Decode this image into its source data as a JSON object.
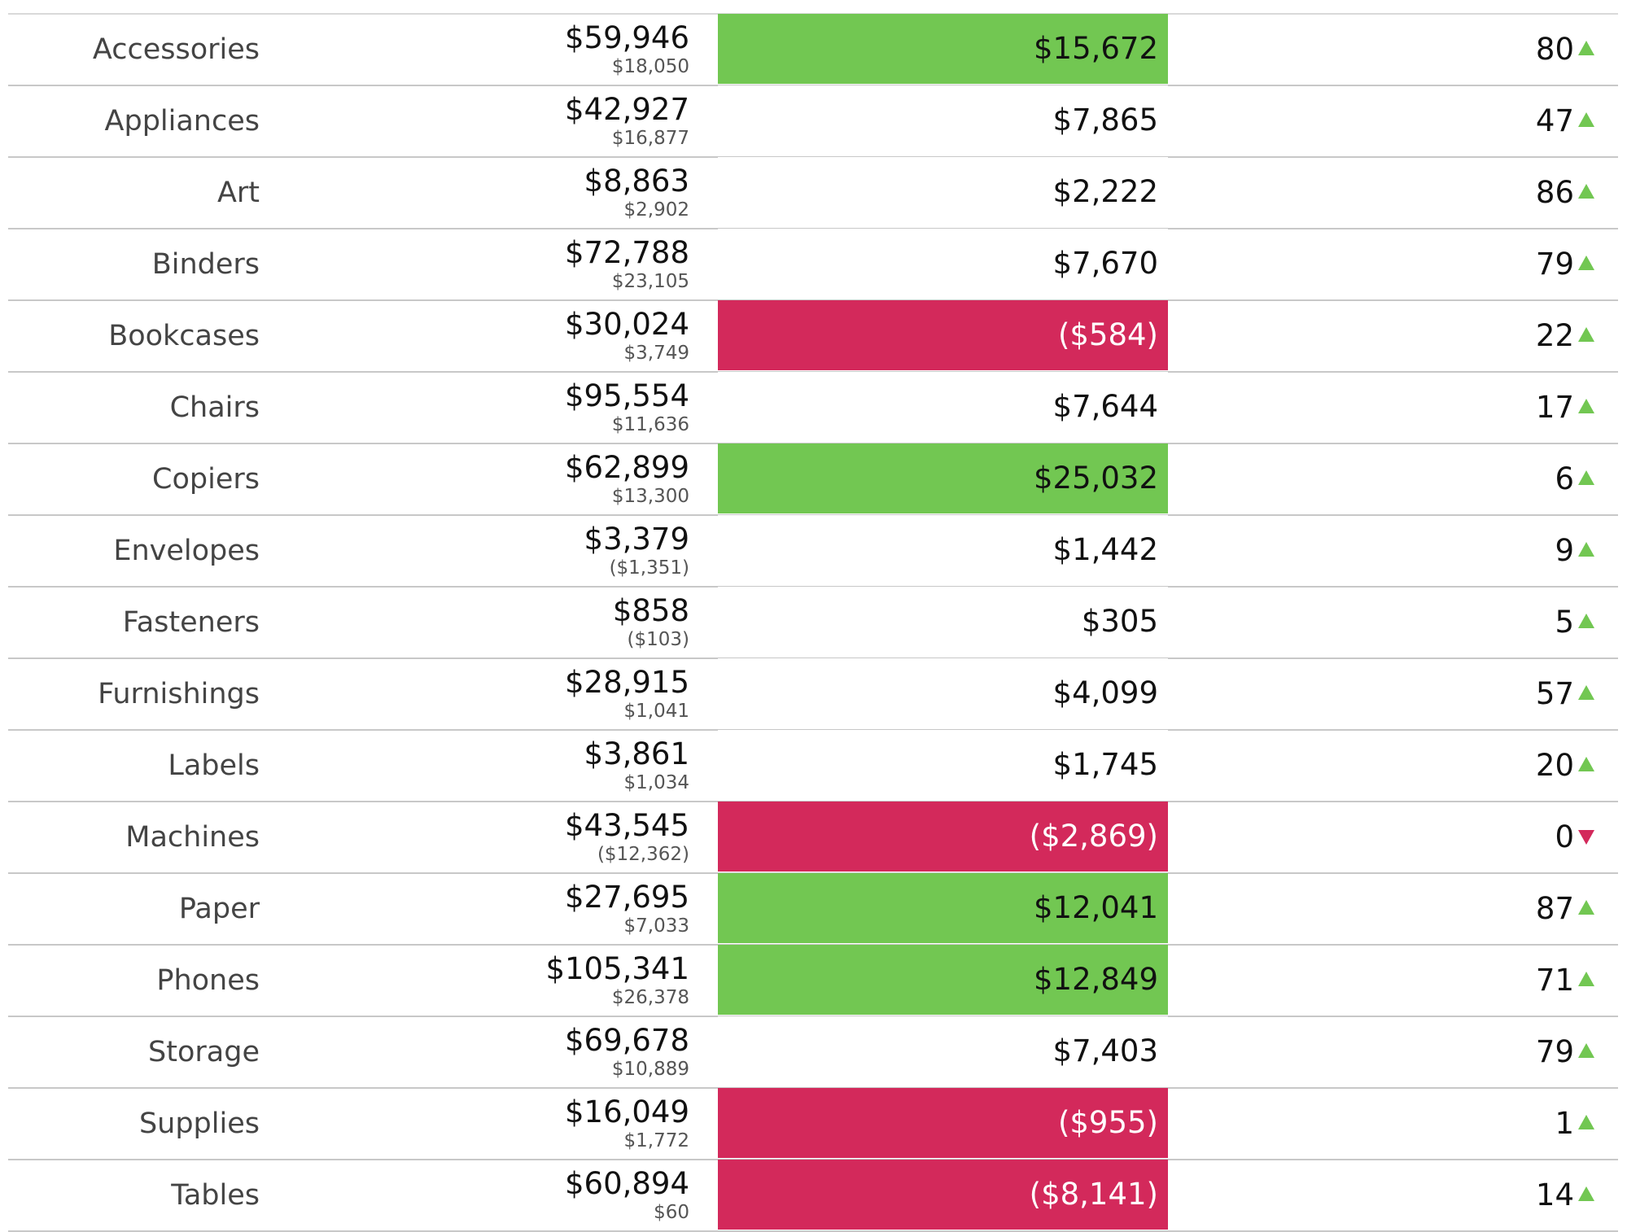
{
  "colors": {
    "positive": "#72c752",
    "negative": "#d3295b",
    "row_divider": "#c8c8c8"
  },
  "rows": [
    {
      "category": "Accessories",
      "sales": "$59,946",
      "sales_sub": "$18,050",
      "profit": "$15,672",
      "profit_status": "pos",
      "count": "80",
      "trend": "up"
    },
    {
      "category": "Appliances",
      "sales": "$42,927",
      "sales_sub": "$16,877",
      "profit": "$7,865",
      "profit_status": "neutral",
      "count": "47",
      "trend": "up"
    },
    {
      "category": "Art",
      "sales": "$8,863",
      "sales_sub": "$2,902",
      "profit": "$2,222",
      "profit_status": "neutral",
      "count": "86",
      "trend": "up"
    },
    {
      "category": "Binders",
      "sales": "$72,788",
      "sales_sub": "$23,105",
      "profit": "$7,670",
      "profit_status": "neutral",
      "count": "79",
      "trend": "up"
    },
    {
      "category": "Bookcases",
      "sales": "$30,024",
      "sales_sub": "$3,749",
      "profit": "($584)",
      "profit_status": "neg",
      "count": "22",
      "trend": "up"
    },
    {
      "category": "Chairs",
      "sales": "$95,554",
      "sales_sub": "$11,636",
      "profit": "$7,644",
      "profit_status": "neutral",
      "count": "17",
      "trend": "up"
    },
    {
      "category": "Copiers",
      "sales": "$62,899",
      "sales_sub": "$13,300",
      "profit": "$25,032",
      "profit_status": "pos",
      "count": "6",
      "trend": "up"
    },
    {
      "category": "Envelopes",
      "sales": "$3,379",
      "sales_sub": "($1,351)",
      "profit": "$1,442",
      "profit_status": "neutral",
      "count": "9",
      "trend": "up"
    },
    {
      "category": "Fasteners",
      "sales": "$858",
      "sales_sub": "($103)",
      "profit": "$305",
      "profit_status": "neutral",
      "count": "5",
      "trend": "up"
    },
    {
      "category": "Furnishings",
      "sales": "$28,915",
      "sales_sub": "$1,041",
      "profit": "$4,099",
      "profit_status": "neutral",
      "count": "57",
      "trend": "up"
    },
    {
      "category": "Labels",
      "sales": "$3,861",
      "sales_sub": "$1,034",
      "profit": "$1,745",
      "profit_status": "neutral",
      "count": "20",
      "trend": "up"
    },
    {
      "category": "Machines",
      "sales": "$43,545",
      "sales_sub": "($12,362)",
      "profit": "($2,869)",
      "profit_status": "neg",
      "count": "0",
      "trend": "down"
    },
    {
      "category": "Paper",
      "sales": "$27,695",
      "sales_sub": "$7,033",
      "profit": "$12,041",
      "profit_status": "pos",
      "count": "87",
      "trend": "up"
    },
    {
      "category": "Phones",
      "sales": "$105,341",
      "sales_sub": "$26,378",
      "profit": "$12,849",
      "profit_status": "pos",
      "count": "71",
      "trend": "up"
    },
    {
      "category": "Storage",
      "sales": "$69,678",
      "sales_sub": "$10,889",
      "profit": "$7,403",
      "profit_status": "neutral",
      "count": "79",
      "trend": "up"
    },
    {
      "category": "Supplies",
      "sales": "$16,049",
      "sales_sub": "$1,772",
      "profit": "($955)",
      "profit_status": "neg",
      "count": "1",
      "trend": "up"
    },
    {
      "category": "Tables",
      "sales": "$60,894",
      "sales_sub": "$60",
      "profit": "($8,141)",
      "profit_status": "neg",
      "count": "14",
      "trend": "up"
    }
  ]
}
